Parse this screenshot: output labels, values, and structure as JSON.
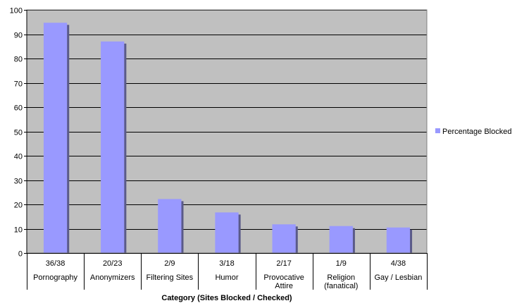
{
  "chart_data": {
    "type": "bar",
    "title": "",
    "xlabel": "Category (Sites Blocked / Checked)",
    "ylabel": "",
    "ylim": [
      0,
      100
    ],
    "yticks": [
      "0",
      "10",
      "20",
      "30",
      "40",
      "50",
      "60",
      "70",
      "80",
      "90",
      "100"
    ],
    "categories": [
      {
        "fraction": "36/38",
        "label": [
          "Pornography"
        ]
      },
      {
        "fraction": "20/23",
        "label": [
          "Anonymizers"
        ]
      },
      {
        "fraction": "2/9",
        "label": [
          "Filtering Sites"
        ]
      },
      {
        "fraction": "3/18",
        "label": [
          "Humor"
        ]
      },
      {
        "fraction": "2/17",
        "label": [
          "Provocative",
          "Attire"
        ]
      },
      {
        "fraction": "1/9",
        "label": [
          "Religion",
          "(fanatical)"
        ]
      },
      {
        "fraction": "4/38",
        "label": [
          "Gay / Lesbian"
        ]
      }
    ],
    "series": [
      {
        "name": "Percentage Blocked",
        "values": [
          94.7,
          87.0,
          22.2,
          16.7,
          11.8,
          11.1,
          10.5
        ]
      }
    ],
    "grid": true,
    "legend_position": "right",
    "colors": {
      "bar": "#9999ff",
      "bar_shadow": "#5a5a88",
      "plot_bg": "#c0c0c0",
      "grid": "#000000"
    }
  }
}
